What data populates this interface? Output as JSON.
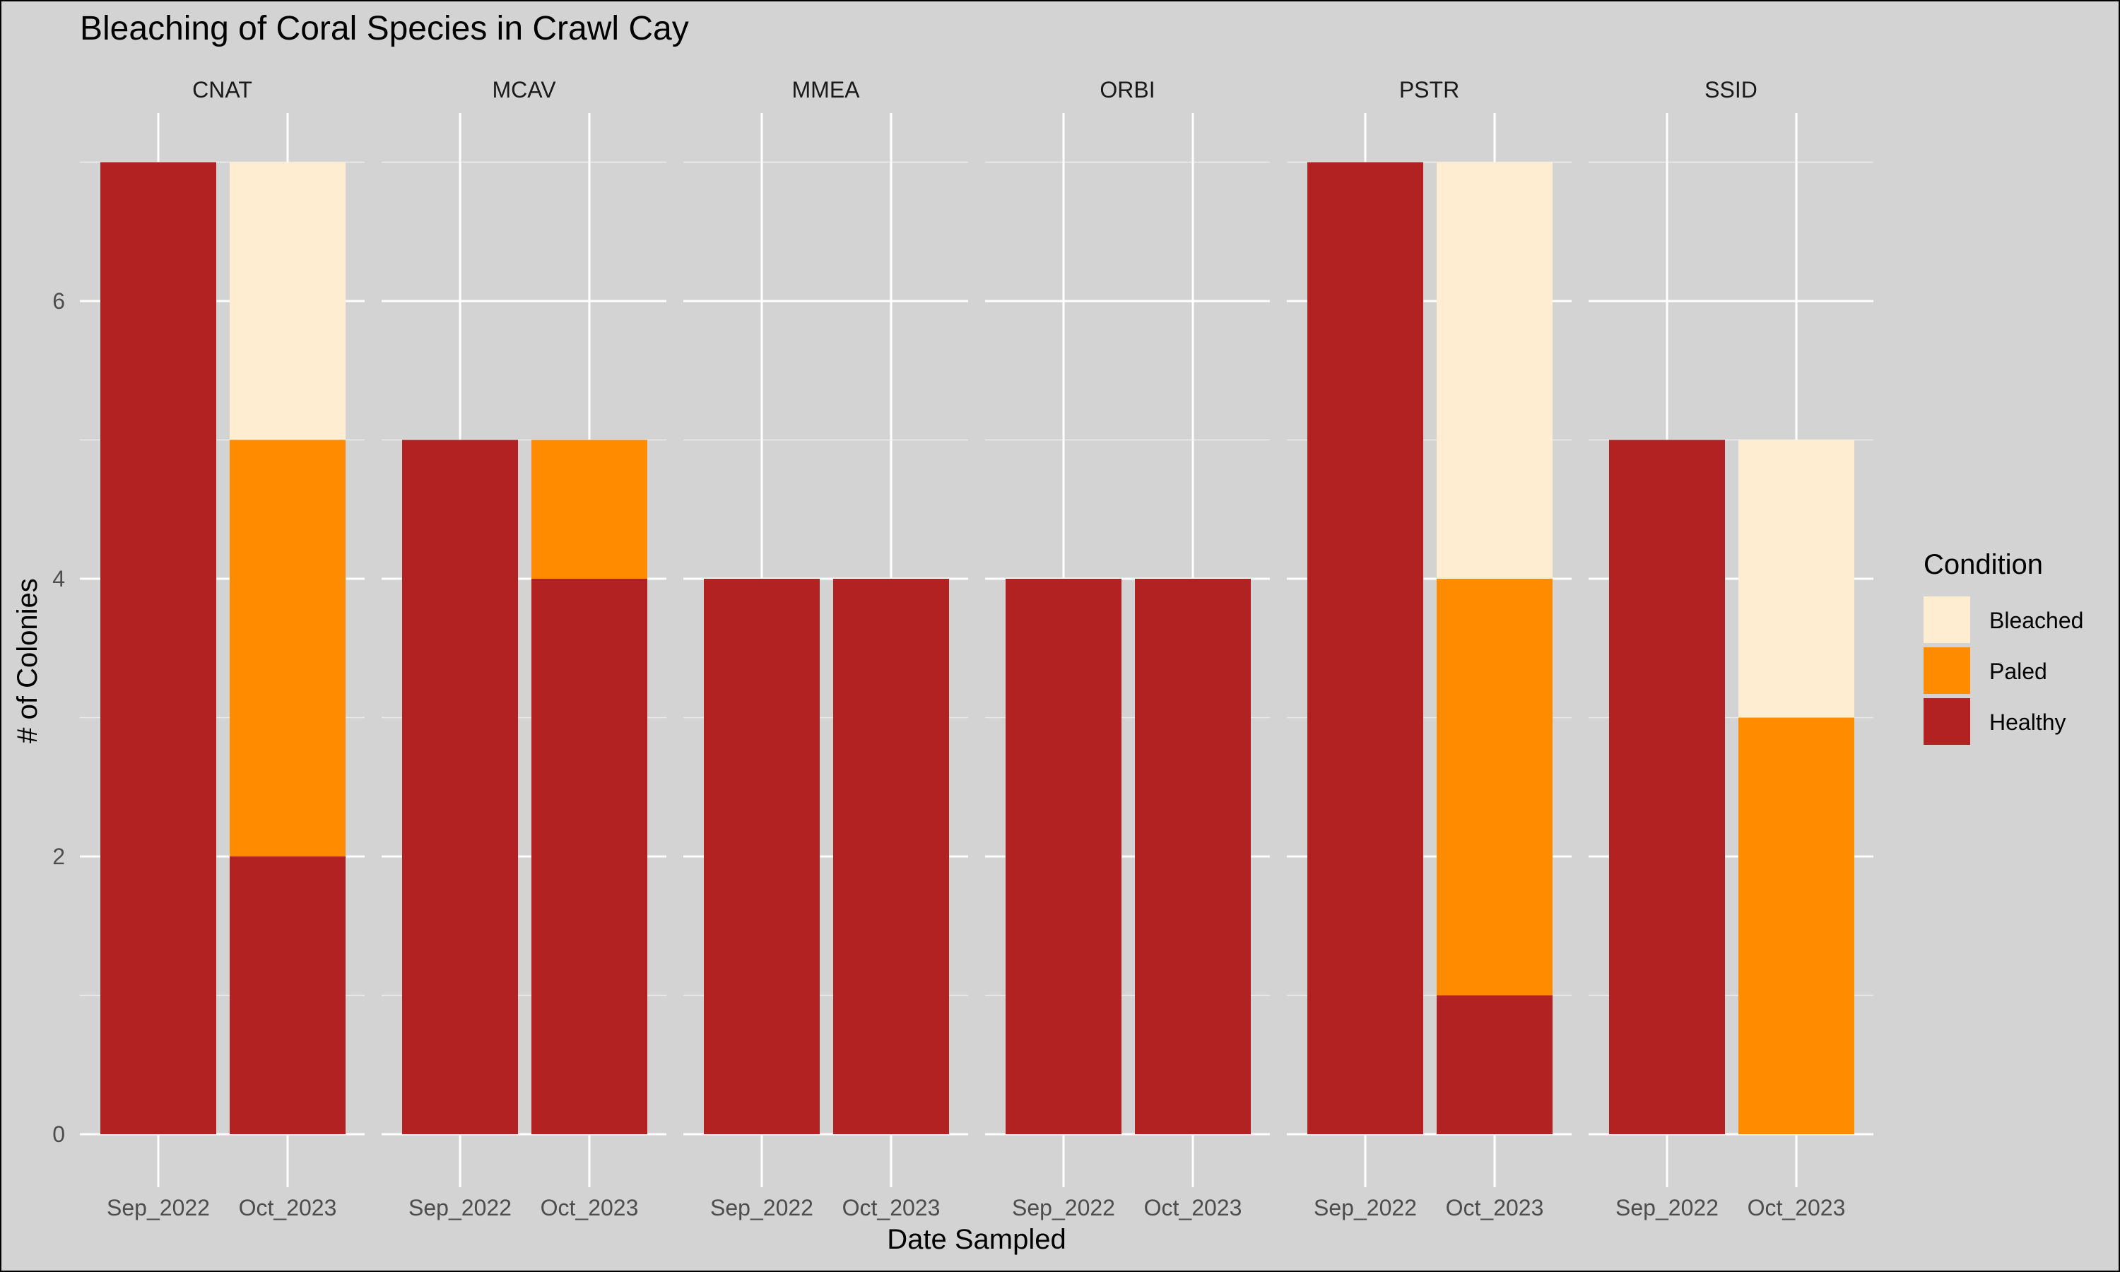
{
  "chart_data": {
    "type": "bar",
    "stacked": true,
    "title": "Bleaching of Coral Species in Crawl Cay",
    "xlabel": "Date Sampled",
    "ylabel": "# of Colonies",
    "ylim": [
      0,
      7.3
    ],
    "yticks": [
      0,
      2,
      4,
      6
    ],
    "grid": true,
    "legend": {
      "title": "Condition",
      "position": "right",
      "entries": [
        {
          "label": "Bleached",
          "color": "#FFEDD2"
        },
        {
          "label": "Paled",
          "color": "#FF8C00"
        },
        {
          "label": "Healthy",
          "color": "#B22222"
        }
      ]
    },
    "categories": [
      "Sep_2022",
      "Oct_2023"
    ],
    "panels": [
      {
        "name": "CNAT",
        "series": {
          "Healthy": [
            7,
            2
          ],
          "Paled": [
            0,
            3
          ],
          "Bleached": [
            0,
            2
          ]
        }
      },
      {
        "name": "MCAV",
        "series": {
          "Healthy": [
            5,
            4
          ],
          "Paled": [
            0,
            1
          ],
          "Bleached": [
            0,
            0
          ]
        }
      },
      {
        "name": "MMEA",
        "series": {
          "Healthy": [
            4,
            4
          ],
          "Paled": [
            0,
            0
          ],
          "Bleached": [
            0,
            0
          ]
        }
      },
      {
        "name": "ORBI",
        "series": {
          "Healthy": [
            4,
            4
          ],
          "Paled": [
            0,
            0
          ],
          "Bleached": [
            0,
            0
          ]
        }
      },
      {
        "name": "PSTR",
        "series": {
          "Healthy": [
            7,
            1
          ],
          "Paled": [
            0,
            3
          ],
          "Bleached": [
            0,
            3
          ]
        }
      },
      {
        "name": "SSID",
        "series": {
          "Healthy": [
            5,
            0
          ],
          "Paled": [
            0,
            3
          ],
          "Bleached": [
            0,
            2
          ]
        }
      }
    ]
  }
}
